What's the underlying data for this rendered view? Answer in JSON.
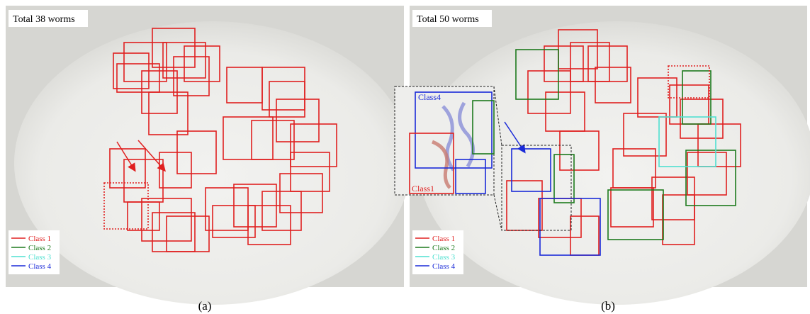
{
  "panels": [
    {
      "title": "Total 38 worms",
      "legend": [
        "Class 1",
        "Class 2",
        "Class 3",
        "Class 4"
      ],
      "caption": "(a)"
    },
    {
      "title": "Total 50 worms",
      "legend": [
        "Class 1",
        "Class 2",
        "Class 3",
        "Class 4"
      ],
      "caption": "(b)",
      "inset_labels": [
        "Class4",
        "Class1"
      ]
    }
  ]
}
